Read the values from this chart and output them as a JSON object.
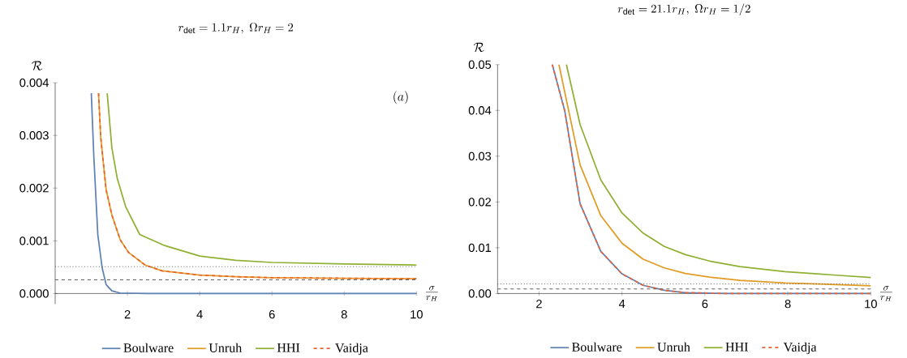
{
  "chart_data": [
    {
      "type": "line",
      "title": "r_{\\mathrm{det}}=1.1r_H,\\ \\Omega r_H=2",
      "xlabel": "\\frac{\\sigma}{r_H}",
      "ylabel": "\\mathcal{R}",
      "annotations": [
        "(a)"
      ],
      "xlim": [
        0,
        10
      ],
      "ylim": [
        -0.0002,
        0.004
      ],
      "xticks": [
        2,
        4,
        6,
        8,
        10
      ],
      "yticks": [
        {
          "value": 0,
          "label": "0.000"
        },
        {
          "value": 0.001,
          "label": "0.001"
        },
        {
          "value": 0.002,
          "label": "0.002"
        },
        {
          "value": 0.003,
          "label": "0.003"
        },
        {
          "value": 0.004,
          "label": "0.004"
        }
      ],
      "legend": "bottom",
      "grid": false,
      "ref_lines": [
        {
          "axis": "y",
          "value": 0.00051,
          "color": "#555555",
          "line_style": "dotted"
        },
        {
          "axis": "y",
          "value": 0.00026,
          "color": "#555555",
          "line_style": "dashed"
        }
      ],
      "series": [
        {
          "name": "Boulware",
          "color": "#5e81b5",
          "line_style": "solid",
          "x": [
            1.0,
            1.07,
            1.18,
            1.3,
            1.41,
            1.57,
            1.8,
            2.5,
            4,
            6,
            8,
            10
          ],
          "values": [
            0.0038,
            0.0026,
            0.00112,
            0.00049,
            0.00017,
            5e-05,
            1e-05,
            0,
            0,
            0,
            0,
            0
          ]
        },
        {
          "name": "Unruh",
          "color": "#e19c24",
          "line_style": "solid",
          "x": [
            1.2,
            1.26,
            1.41,
            1.57,
            1.8,
            2.03,
            2.49,
            2.96,
            4,
            5,
            6,
            8,
            10
          ],
          "values": [
            0.0038,
            0.00297,
            0.00197,
            0.00149,
            0.00102,
            0.00078,
            0.00054,
            0.00043,
            0.00035,
            0.00032,
            0.0003,
            0.00029,
            0.00028
          ]
        },
        {
          "name": "HHI",
          "color": "#8fb032",
          "line_style": "solid",
          "x": [
            1.44,
            1.57,
            1.72,
            1.95,
            2.34,
            3.03,
            4,
            5,
            6,
            8,
            10
          ],
          "values": [
            0.0038,
            0.00276,
            0.00218,
            0.00165,
            0.00112,
            0.00091,
            0.00071,
            0.00063,
            0.00059,
            0.00056,
            0.00054
          ]
        },
        {
          "name": "Vaidja",
          "color": "#eb6235",
          "line_style": "dashed",
          "x": [
            1.2,
            1.26,
            1.41,
            1.57,
            1.8,
            2.03,
            2.49,
            2.96,
            4,
            5,
            6,
            8,
            10
          ],
          "values": [
            0.0038,
            0.00297,
            0.00197,
            0.00149,
            0.00102,
            0.00078,
            0.00054,
            0.00043,
            0.00035,
            0.00032,
            0.0003,
            0.00029,
            0.00028
          ]
        }
      ]
    },
    {
      "type": "line",
      "title": "r_{\\mathrm{det}}=21.1r_H,\\ \\Omega r_H=1/2",
      "xlabel": "\\frac{\\sigma}{r_H}",
      "ylabel": "\\mathcal{R}",
      "xlim": [
        1,
        10
      ],
      "ylim": [
        0,
        0.05
      ],
      "xticks": [
        2,
        4,
        6,
        8,
        10
      ],
      "yticks": [
        {
          "value": 0,
          "label": "0.00"
        },
        {
          "value": 0.01,
          "label": "0.01"
        },
        {
          "value": 0.02,
          "label": "0.02"
        },
        {
          "value": 0.03,
          "label": "0.03"
        },
        {
          "value": 0.04,
          "label": "0.04"
        },
        {
          "value": 0.05,
          "label": "0.05"
        }
      ],
      "legend": "bottom",
      "grid": false,
      "ref_lines": [
        {
          "axis": "y",
          "value": 0.0021,
          "color": "#555555",
          "line_style": "dotted"
        },
        {
          "axis": "y",
          "value": 0.001,
          "color": "#555555",
          "line_style": "dashed"
        }
      ],
      "series": [
        {
          "name": "Boulware",
          "color": "#5e81b5",
          "line_style": "solid",
          "x": [
            2.32,
            2.62,
            2.99,
            3.49,
            4.0,
            4.51,
            5.02,
            5.53,
            6.5,
            8,
            10
          ],
          "values": [
            0.05,
            0.0399,
            0.0196,
            0.0092,
            0.0043,
            0.0018,
            0.0007,
            0.0002,
            0,
            0,
            0
          ]
        },
        {
          "name": "Unruh",
          "color": "#e19c24",
          "line_style": "solid",
          "x": [
            2.48,
            2.99,
            3.49,
            4.0,
            4.51,
            5.02,
            5.53,
            6.11,
            6.84,
            7.93,
            9.02,
            10
          ],
          "values": [
            0.05,
            0.0281,
            0.017,
            0.011,
            0.0075,
            0.0056,
            0.0044,
            0.0036,
            0.0029,
            0.0023,
            0.002,
            0.0017
          ]
        },
        {
          "name": "HHI",
          "color": "#8fb032",
          "line_style": "solid",
          "x": [
            2.66,
            2.99,
            3.49,
            4.0,
            4.51,
            5.02,
            5.53,
            6.11,
            6.84,
            7.93,
            9.02,
            10
          ],
          "values": [
            0.05,
            0.0369,
            0.0248,
            0.0176,
            0.0132,
            0.0103,
            0.0085,
            0.0071,
            0.0059,
            0.0048,
            0.0041,
            0.0035
          ]
        },
        {
          "name": "Vaidja",
          "color": "#eb6235",
          "line_style": "dashed",
          "x": [
            2.32,
            2.62,
            2.99,
            3.49,
            4.0,
            4.51,
            5.02,
            5.53,
            6.5,
            8,
            10
          ],
          "values": [
            0.05,
            0.0399,
            0.0196,
            0.0092,
            0.0043,
            0.0018,
            0.0007,
            0.0002,
            0,
            0,
            0
          ]
        }
      ]
    }
  ]
}
